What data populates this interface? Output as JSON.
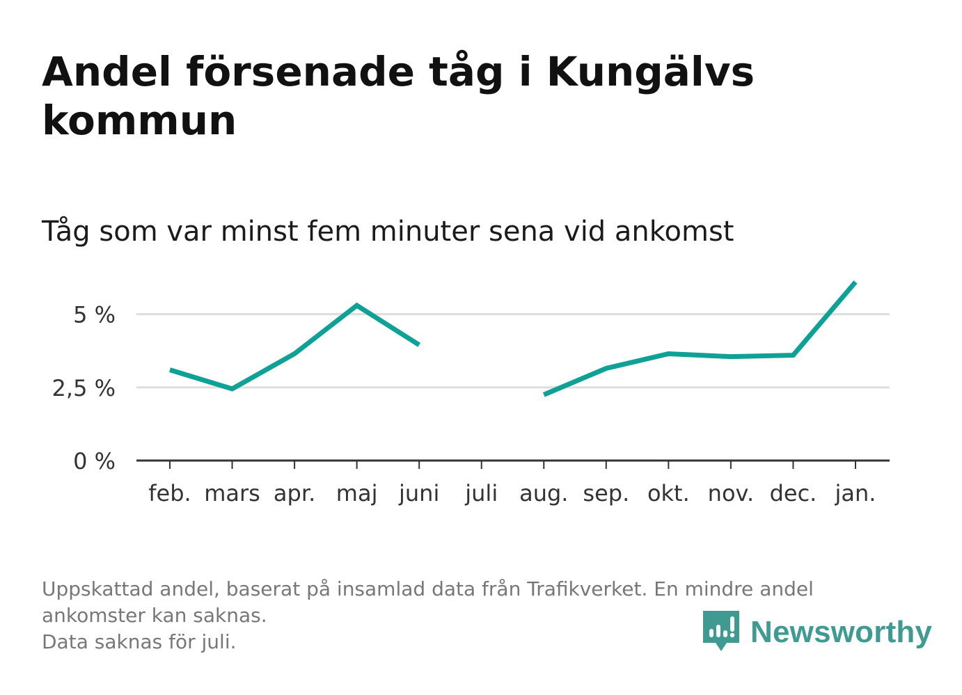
{
  "title": "Andel försenade tåg i Kungälvs kommun",
  "subtitle": "Tåg som var minst fem minuter sena vid ankomst",
  "footnote": {
    "line1": "Uppskattad andel, baserat på insamlad data från Trafikverket. En mindre andel",
    "line2": "ankomster kan saknas.",
    "line3": "Data saknas för juli."
  },
  "brand": {
    "name": "Newsworthy",
    "icon": "newsworthy-logo-icon",
    "color": "#3f9b91"
  },
  "colors": {
    "line": "#0fa196",
    "grid": "#dddddd",
    "axis": "#333333"
  },
  "chart_data": {
    "type": "line",
    "categories": [
      "feb.",
      "mars",
      "apr.",
      "maj",
      "juni",
      "juli",
      "aug.",
      "sep.",
      "okt.",
      "nov.",
      "dec.",
      "jan."
    ],
    "series": [
      {
        "values": [
          3.1,
          2.45,
          3.65,
          5.3,
          3.95,
          null,
          2.25,
          3.15,
          3.65,
          3.55,
          3.6,
          6.1
        ]
      }
    ],
    "yticks": [
      0,
      2.5,
      5
    ],
    "ytick_labels": [
      "0 %",
      "2,5 %",
      "5 %"
    ],
    "ylim": [
      0,
      6.3
    ],
    "grid": true,
    "legend": "none"
  }
}
